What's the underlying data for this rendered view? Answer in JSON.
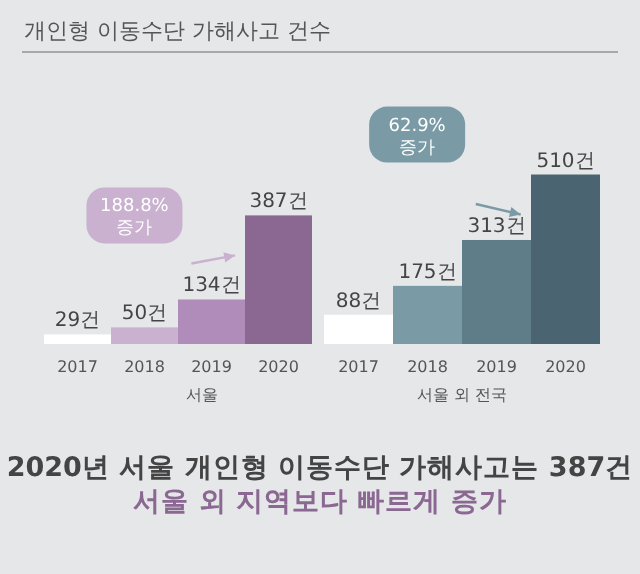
{
  "chart_data": [
    {
      "type": "bar",
      "title": "개인형 이동수단 가해사고 건수",
      "xlabel": "서울",
      "categories": [
        "2017",
        "2018",
        "2019",
        "2020"
      ],
      "values": [
        29,
        50,
        134,
        387
      ],
      "colors": [
        "#ffffff",
        "#c9b1cf",
        "#b08cba",
        "#8a6892"
      ],
      "value_labels": [
        "29건",
        "50건",
        "134건",
        "387건"
      ],
      "annotations": [
        "188.8% 증가"
      ]
    },
    {
      "type": "bar",
      "xlabel": "서울 외 전국",
      "categories": [
        "2017",
        "2018",
        "2019",
        "2020"
      ],
      "values": [
        88,
        175,
        313,
        510
      ],
      "colors": [
        "#ffffff",
        "#7a9ba6",
        "#5f7d89",
        "#4a6472"
      ],
      "value_labels": [
        "88건",
        "175건",
        "313건",
        "510건"
      ],
      "annotations": [
        "62.9% 증가"
      ]
    },
    {
      "type": "other",
      "annotations": [
        "2020년 서울 개인형 이동수단 가해사고는 387건",
        "서울 외 지역보다 빠르게 증가"
      ]
    }
  ]
}
